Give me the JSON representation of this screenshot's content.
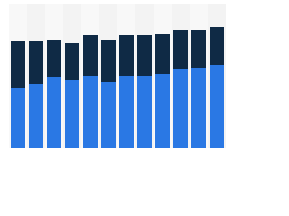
{
  "chart_data": {
    "type": "stacked-bar",
    "categories": [
      null,
      null,
      null,
      null,
      null,
      null,
      null,
      null,
      null,
      null,
      null,
      null
    ],
    "series": [
      {
        "color": "#2a78e4",
        "values": [
          67,
          72,
          79,
          76,
          81,
          74,
          80,
          81,
          83,
          88,
          89,
          93
        ]
      },
      {
        "color": "#0f2a45",
        "values": [
          52,
          47,
          42,
          41,
          45,
          47,
          46,
          45,
          44,
          44,
          43,
          42
        ]
      }
    ],
    "ylim": [
      0,
      160
    ],
    "grid": false
  }
}
